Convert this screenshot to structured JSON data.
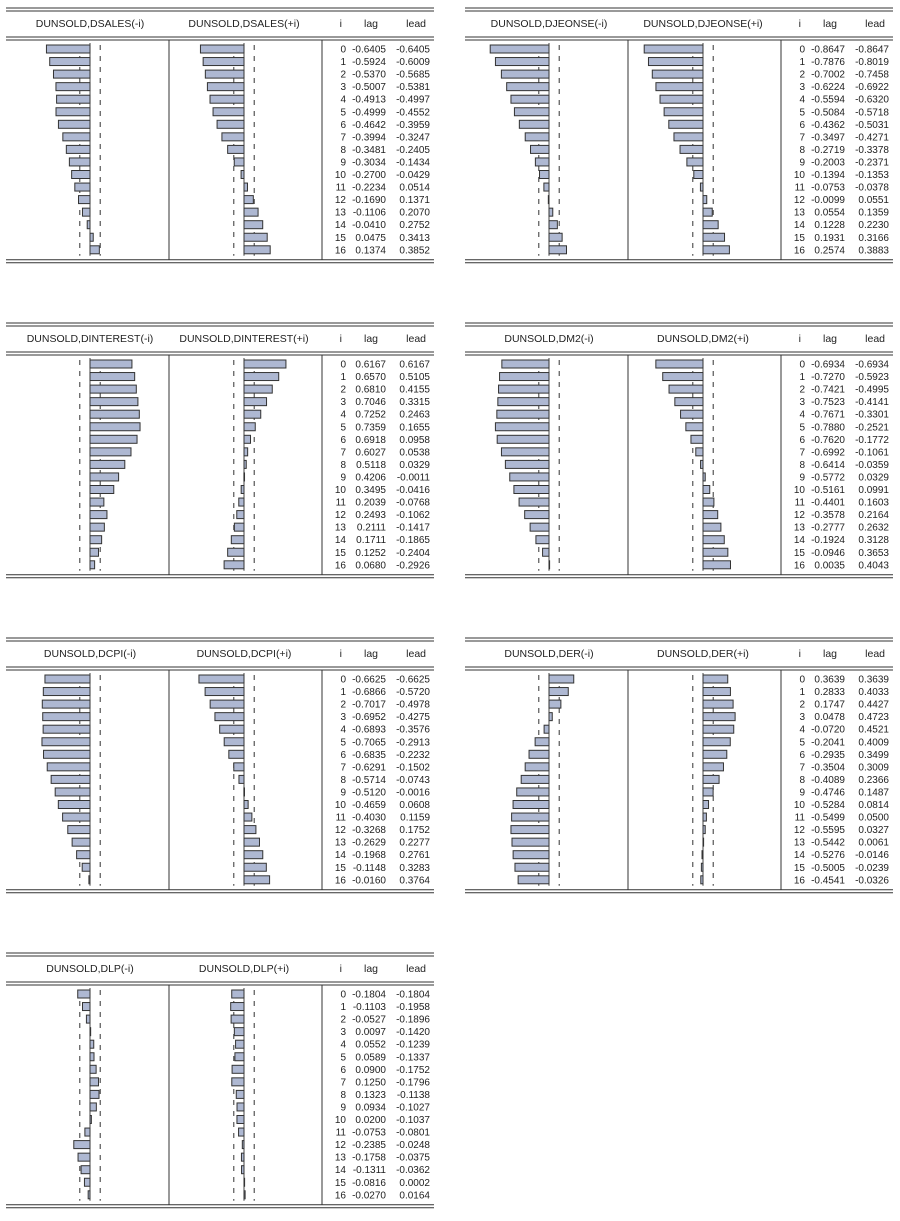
{
  "columns": {
    "i": "i",
    "lag": "lag",
    "lead": "lead"
  },
  "chart_data": [
    {
      "type": "table",
      "left_title": "DUNSOLD,DSALES(-i)",
      "right_title": "DUNSOLD,DSALES(+i)",
      "confidence_band": 0.15,
      "rows": [
        {
          "i": "0",
          "lag": "-0.6405",
          "lead": "-0.6405"
        },
        {
          "i": "1",
          "lag": "-0.5924",
          "lead": "-0.6009"
        },
        {
          "i": "2",
          "lag": "-0.5370",
          "lead": "-0.5685"
        },
        {
          "i": "3",
          "lag": "-0.5007",
          "lead": "-0.5381"
        },
        {
          "i": "4",
          "lag": "-0.4913",
          "lead": "-0.4997"
        },
        {
          "i": "5",
          "lag": "-0.4999",
          "lead": "-0.4552"
        },
        {
          "i": "6",
          "lag": "-0.4642",
          "lead": "-0.3959"
        },
        {
          "i": "7",
          "lag": "-0.3994",
          "lead": "-0.3247"
        },
        {
          "i": "8",
          "lag": "-0.3481",
          "lead": "-0.2405"
        },
        {
          "i": "9",
          "lag": "-0.3034",
          "lead": "-0.1434"
        },
        {
          "i": "10",
          "lag": "-0.2700",
          "lead": "-0.0429"
        },
        {
          "i": "11",
          "lag": "-0.2234",
          "lead": "0.0514"
        },
        {
          "i": "12",
          "lag": "-0.1690",
          "lead": "0.1371"
        },
        {
          "i": "13",
          "lag": "-0.1106",
          "lead": "0.2070"
        },
        {
          "i": "14",
          "lag": "-0.0410",
          "lead": "0.2752"
        },
        {
          "i": "15",
          "lag": "0.0475",
          "lead": "0.3413"
        },
        {
          "i": "16",
          "lag": "0.1374",
          "lead": "0.3852"
        }
      ]
    },
    {
      "type": "table",
      "left_title": "DUNSOLD,DJEONSE(-i)",
      "right_title": "DUNSOLD,DJEONSE(+i)",
      "confidence_band": 0.15,
      "rows": [
        {
          "i": "0",
          "lag": "-0.8647",
          "lead": "-0.8647"
        },
        {
          "i": "1",
          "lag": "-0.7876",
          "lead": "-0.8019"
        },
        {
          "i": "2",
          "lag": "-0.7002",
          "lead": "-0.7458"
        },
        {
          "i": "3",
          "lag": "-0.6224",
          "lead": "-0.6922"
        },
        {
          "i": "4",
          "lag": "-0.5594",
          "lead": "-0.6320"
        },
        {
          "i": "5",
          "lag": "-0.5084",
          "lead": "-0.5718"
        },
        {
          "i": "6",
          "lag": "-0.4362",
          "lead": "-0.5031"
        },
        {
          "i": "7",
          "lag": "-0.3497",
          "lead": "-0.4271"
        },
        {
          "i": "8",
          "lag": "-0.2719",
          "lead": "-0.3378"
        },
        {
          "i": "9",
          "lag": "-0.2003",
          "lead": "-0.2371"
        },
        {
          "i": "10",
          "lag": "-0.1394",
          "lead": "-0.1353"
        },
        {
          "i": "11",
          "lag": "-0.0753",
          "lead": "-0.0378"
        },
        {
          "i": "12",
          "lag": "-0.0099",
          "lead": "0.0551"
        },
        {
          "i": "13",
          "lag": "0.0554",
          "lead": "0.1359"
        },
        {
          "i": "14",
          "lag": "0.1228",
          "lead": "0.2230"
        },
        {
          "i": "15",
          "lag": "0.1931",
          "lead": "0.3166"
        },
        {
          "i": "16",
          "lag": "0.2574",
          "lead": "0.3883"
        }
      ]
    },
    {
      "type": "table",
      "left_title": "DUNSOLD,DINTEREST(-i)",
      "right_title": "DUNSOLD,DINTEREST(+i)",
      "confidence_band": 0.15,
      "rows": [
        {
          "i": "0",
          "lag": "0.6167",
          "lead": "0.6167"
        },
        {
          "i": "1",
          "lag": "0.6570",
          "lead": "0.5105"
        },
        {
          "i": "2",
          "lag": "0.6810",
          "lead": "0.4155"
        },
        {
          "i": "3",
          "lag": "0.7046",
          "lead": "0.3315"
        },
        {
          "i": "4",
          "lag": "0.7252",
          "lead": "0.2463"
        },
        {
          "i": "5",
          "lag": "0.7359",
          "lead": "0.1655"
        },
        {
          "i": "6",
          "lag": "0.6918",
          "lead": "0.0958"
        },
        {
          "i": "7",
          "lag": "0.6027",
          "lead": "0.0538"
        },
        {
          "i": "8",
          "lag": "0.5118",
          "lead": "0.0329"
        },
        {
          "i": "9",
          "lag": "0.4206",
          "lead": "-0.0011"
        },
        {
          "i": "10",
          "lag": "0.3495",
          "lead": "-0.0416"
        },
        {
          "i": "11",
          "lag": "0.2039",
          "lead": "-0.0768"
        },
        {
          "i": "12",
          "lag": "0.2493",
          "lead": "-0.1062"
        },
        {
          "i": "13",
          "lag": "0.2111",
          "lead": "-0.1417"
        },
        {
          "i": "14",
          "lag": "0.1711",
          "lead": "-0.1865"
        },
        {
          "i": "15",
          "lag": "0.1252",
          "lead": "-0.2404"
        },
        {
          "i": "16",
          "lag": "0.0680",
          "lead": "-0.2926"
        }
      ]
    },
    {
      "type": "table",
      "left_title": "DUNSOLD,DM2(-i)",
      "right_title": "DUNSOLD,DM2(+i)",
      "confidence_band": 0.15,
      "rows": [
        {
          "i": "0",
          "lag": "-0.6934",
          "lead": "-0.6934"
        },
        {
          "i": "1",
          "lag": "-0.7270",
          "lead": "-0.5923"
        },
        {
          "i": "2",
          "lag": "-0.7421",
          "lead": "-0.4995"
        },
        {
          "i": "3",
          "lag": "-0.7523",
          "lead": "-0.4141"
        },
        {
          "i": "4",
          "lag": "-0.7671",
          "lead": "-0.3301"
        },
        {
          "i": "5",
          "lag": "-0.7880",
          "lead": "-0.2521"
        },
        {
          "i": "6",
          "lag": "-0.7620",
          "lead": "-0.1772"
        },
        {
          "i": "7",
          "lag": "-0.6992",
          "lead": "-0.1061"
        },
        {
          "i": "8",
          "lag": "-0.6414",
          "lead": "-0.0359"
        },
        {
          "i": "9",
          "lag": "-0.5772",
          "lead": "0.0329"
        },
        {
          "i": "10",
          "lag": "-0.5161",
          "lead": "0.0991"
        },
        {
          "i": "11",
          "lag": "-0.4401",
          "lead": "0.1603"
        },
        {
          "i": "12",
          "lag": "-0.3578",
          "lead": "0.2164"
        },
        {
          "i": "13",
          "lag": "-0.2777",
          "lead": "0.2632"
        },
        {
          "i": "14",
          "lag": "-0.1924",
          "lead": "0.3128"
        },
        {
          "i": "15",
          "lag": "-0.0946",
          "lead": "0.3653"
        },
        {
          "i": "16",
          "lag": "0.0035",
          "lead": "0.4043"
        }
      ]
    },
    {
      "type": "table",
      "left_title": "DUNSOLD,DCPI(-i)",
      "right_title": "DUNSOLD,DCPI(+i)",
      "confidence_band": 0.15,
      "rows": [
        {
          "i": "0",
          "lag": "-0.6625",
          "lead": "-0.6625"
        },
        {
          "i": "1",
          "lag": "-0.6866",
          "lead": "-0.5720"
        },
        {
          "i": "2",
          "lag": "-0.7017",
          "lead": "-0.4978"
        },
        {
          "i": "3",
          "lag": "-0.6952",
          "lead": "-0.4275"
        },
        {
          "i": "4",
          "lag": "-0.6893",
          "lead": "-0.3576"
        },
        {
          "i": "5",
          "lag": "-0.7065",
          "lead": "-0.2913"
        },
        {
          "i": "6",
          "lag": "-0.6835",
          "lead": "-0.2232"
        },
        {
          "i": "7",
          "lag": "-0.6291",
          "lead": "-0.1502"
        },
        {
          "i": "8",
          "lag": "-0.5714",
          "lead": "-0.0743"
        },
        {
          "i": "9",
          "lag": "-0.5120",
          "lead": "-0.0016"
        },
        {
          "i": "10",
          "lag": "-0.4659",
          "lead": "0.0608"
        },
        {
          "i": "11",
          "lag": "-0.4030",
          "lead": "0.1159"
        },
        {
          "i": "12",
          "lag": "-0.3268",
          "lead": "0.1752"
        },
        {
          "i": "13",
          "lag": "-0.2629",
          "lead": "0.2277"
        },
        {
          "i": "14",
          "lag": "-0.1968",
          "lead": "0.2761"
        },
        {
          "i": "15",
          "lag": "-0.1148",
          "lead": "0.3283"
        },
        {
          "i": "16",
          "lag": "-0.0160",
          "lead": "0.3764"
        }
      ]
    },
    {
      "type": "table",
      "left_title": "DUNSOLD,DER(-i)",
      "right_title": "DUNSOLD,DER(+i)",
      "confidence_band": 0.15,
      "rows": [
        {
          "i": "0",
          "lag": "0.3639",
          "lead": "0.3639"
        },
        {
          "i": "1",
          "lag": "0.2833",
          "lead": "0.4033"
        },
        {
          "i": "2",
          "lag": "0.1747",
          "lead": "0.4427"
        },
        {
          "i": "3",
          "lag": "0.0478",
          "lead": "0.4723"
        },
        {
          "i": "4",
          "lag": "-0.0720",
          "lead": "0.4521"
        },
        {
          "i": "5",
          "lag": "-0.2041",
          "lead": "0.4009"
        },
        {
          "i": "6",
          "lag": "-0.2935",
          "lead": "0.3499"
        },
        {
          "i": "7",
          "lag": "-0.3504",
          "lead": "0.3009"
        },
        {
          "i": "8",
          "lag": "-0.4089",
          "lead": "0.2366"
        },
        {
          "i": "9",
          "lag": "-0.4746",
          "lead": "0.1487"
        },
        {
          "i": "10",
          "lag": "-0.5284",
          "lead": "0.0814"
        },
        {
          "i": "11",
          "lag": "-0.5499",
          "lead": "0.0500"
        },
        {
          "i": "12",
          "lag": "-0.5595",
          "lead": "0.0327"
        },
        {
          "i": "13",
          "lag": "-0.5442",
          "lead": "0.0061"
        },
        {
          "i": "14",
          "lag": "-0.5276",
          "lead": "-0.0146"
        },
        {
          "i": "15",
          "lag": "-0.5005",
          "lead": "-0.0239"
        },
        {
          "i": "16",
          "lag": "-0.4541",
          "lead": "-0.0326"
        }
      ]
    },
    {
      "type": "table",
      "left_title": "DUNSOLD,DLP(-i)",
      "right_title": "DUNSOLD,DLP(+i)",
      "confidence_band": 0.15,
      "rows": [
        {
          "i": "0",
          "lag": "-0.1804",
          "lead": "-0.1804"
        },
        {
          "i": "1",
          "lag": "-0.1103",
          "lead": "-0.1958"
        },
        {
          "i": "2",
          "lag": "-0.0527",
          "lead": "-0.1896"
        },
        {
          "i": "3",
          "lag": "0.0097",
          "lead": "-0.1420"
        },
        {
          "i": "4",
          "lag": "0.0552",
          "lead": "-0.1239"
        },
        {
          "i": "5",
          "lag": "0.0589",
          "lead": "-0.1337"
        },
        {
          "i": "6",
          "lag": "0.0900",
          "lead": "-0.1752"
        },
        {
          "i": "7",
          "lag": "0.1250",
          "lead": "-0.1796"
        },
        {
          "i": "8",
          "lag": "0.1323",
          "lead": "-0.1138"
        },
        {
          "i": "9",
          "lag": "0.0934",
          "lead": "-0.1027"
        },
        {
          "i": "10",
          "lag": "0.0200",
          "lead": "-0.1037"
        },
        {
          "i": "11",
          "lag": "-0.0753",
          "lead": "-0.0801"
        },
        {
          "i": "12",
          "lag": "-0.2385",
          "lead": "-0.0248"
        },
        {
          "i": "13",
          "lag": "-0.1758",
          "lead": "-0.0375"
        },
        {
          "i": "14",
          "lag": "-0.1311",
          "lead": "-0.0362"
        },
        {
          "i": "15",
          "lag": "-0.0816",
          "lead": "0.0002"
        },
        {
          "i": "16",
          "lag": "-0.0270",
          "lead": "0.0164"
        }
      ]
    }
  ]
}
